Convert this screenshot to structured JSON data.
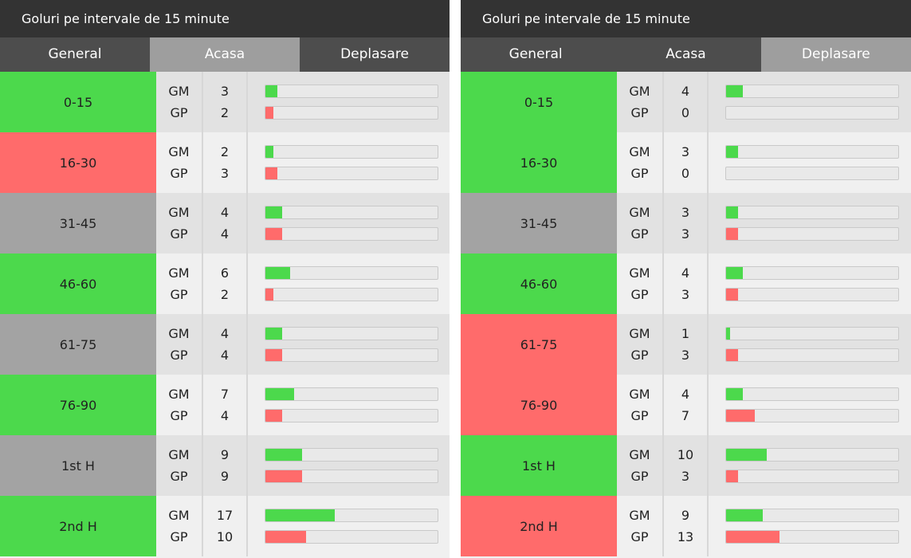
{
  "panels": [
    {
      "title": "Goluri pe intervale de 15 minute",
      "tabs": [
        "General",
        "Acasa",
        "Deplasare"
      ],
      "active_tab": 1,
      "max": 42,
      "rows": [
        {
          "interval": "0-15",
          "status": "green",
          "gm": 3,
          "gp": 2
        },
        {
          "interval": "16-30",
          "status": "red",
          "gm": 2,
          "gp": 3
        },
        {
          "interval": "31-45",
          "status": "grey",
          "gm": 4,
          "gp": 4
        },
        {
          "interval": "46-60",
          "status": "green",
          "gm": 6,
          "gp": 2
        },
        {
          "interval": "61-75",
          "status": "grey",
          "gm": 4,
          "gp": 4
        },
        {
          "interval": "76-90",
          "status": "green",
          "gm": 7,
          "gp": 4
        },
        {
          "interval": "1st H",
          "status": "grey",
          "gm": 9,
          "gp": 9
        },
        {
          "interval": "2nd H",
          "status": "green",
          "gm": 17,
          "gp": 10
        }
      ]
    },
    {
      "title": "Goluri pe intervale de 15 minute",
      "tabs": [
        "General",
        "Acasa",
        "Deplasare"
      ],
      "active_tab": 2,
      "max": 42,
      "rows": [
        {
          "interval": "0-15",
          "status": "green",
          "gm": 4,
          "gp": 0
        },
        {
          "interval": "16-30",
          "status": "green",
          "gm": 3,
          "gp": 0
        },
        {
          "interval": "31-45",
          "status": "grey",
          "gm": 3,
          "gp": 3
        },
        {
          "interval": "46-60",
          "status": "green",
          "gm": 4,
          "gp": 3
        },
        {
          "interval": "61-75",
          "status": "red",
          "gm": 1,
          "gp": 3
        },
        {
          "interval": "76-90",
          "status": "red",
          "gm": 4,
          "gp": 7
        },
        {
          "interval": "1st H",
          "status": "green",
          "gm": 10,
          "gp": 3
        },
        {
          "interval": "2nd H",
          "status": "red",
          "gm": 9,
          "gp": 13
        }
      ]
    }
  ],
  "labels": {
    "gm": "GM",
    "gp": "GP"
  },
  "colors": {
    "green": "#4cd94c",
    "red": "#ff6b6b",
    "grey": "#a3a3a3",
    "header": "#333333"
  }
}
